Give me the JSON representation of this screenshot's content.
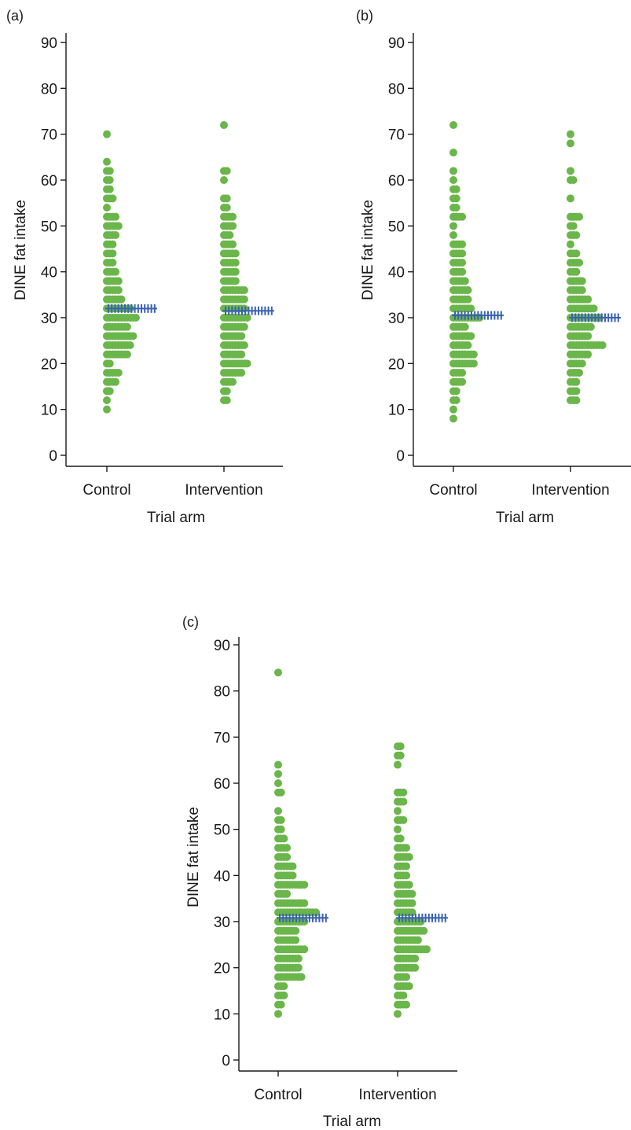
{
  "colors": {
    "points": "#6ab64a",
    "mean_markers": "#3b62b0",
    "axes": "#1a1a1a",
    "background": "#ffffff"
  },
  "chart_data": [
    {
      "panel_label": "(a)",
      "type": "scatter",
      "subtype": "strip-dot-plot",
      "xlabel": "Trial arm",
      "ylabel": "DINE fat intake",
      "ylim": [
        0,
        90
      ],
      "yticks": [
        0,
        10,
        20,
        30,
        40,
        50,
        60,
        70,
        80,
        90
      ],
      "categories": [
        "Control",
        "Intervention"
      ],
      "grid": false,
      "legend": "none",
      "groups": [
        {
          "category": "Control",
          "mean": 32,
          "bins": [
            [
              10,
              1
            ],
            [
              12,
              1
            ],
            [
              14,
              2
            ],
            [
              16,
              4
            ],
            [
              18,
              5
            ],
            [
              20,
              2
            ],
            [
              22,
              8
            ],
            [
              24,
              9
            ],
            [
              26,
              10
            ],
            [
              28,
              8
            ],
            [
              30,
              11
            ],
            [
              32,
              9
            ],
            [
              34,
              6
            ],
            [
              36,
              5
            ],
            [
              38,
              5
            ],
            [
              40,
              4
            ],
            [
              42,
              3
            ],
            [
              44,
              3
            ],
            [
              46,
              3
            ],
            [
              48,
              4
            ],
            [
              50,
              5
            ],
            [
              52,
              4
            ],
            [
              54,
              1
            ],
            [
              56,
              3
            ],
            [
              58,
              2
            ],
            [
              60,
              2
            ],
            [
              62,
              2
            ],
            [
              64,
              1
            ],
            [
              70,
              1
            ]
          ]
        },
        {
          "category": "Intervention",
          "mean": 31.5,
          "bins": [
            [
              12,
              2
            ],
            [
              14,
              2
            ],
            [
              16,
              4
            ],
            [
              18,
              7
            ],
            [
              20,
              9
            ],
            [
              22,
              7
            ],
            [
              24,
              8
            ],
            [
              26,
              7
            ],
            [
              28,
              8
            ],
            [
              30,
              9
            ],
            [
              32,
              8
            ],
            [
              34,
              8
            ],
            [
              36,
              8
            ],
            [
              38,
              5
            ],
            [
              40,
              5
            ],
            [
              42,
              5
            ],
            [
              44,
              5
            ],
            [
              46,
              4
            ],
            [
              48,
              3
            ],
            [
              50,
              4
            ],
            [
              52,
              4
            ],
            [
              54,
              2
            ],
            [
              56,
              2
            ],
            [
              60,
              1
            ],
            [
              62,
              2
            ],
            [
              72,
              1
            ]
          ]
        }
      ]
    },
    {
      "panel_label": "(b)",
      "type": "scatter",
      "subtype": "strip-dot-plot",
      "xlabel": "Trial arm",
      "ylabel": "DINE fat intake",
      "ylim": [
        0,
        90
      ],
      "yticks": [
        0,
        10,
        20,
        30,
        40,
        50,
        60,
        70,
        80,
        90
      ],
      "categories": [
        "Control",
        "Intervention"
      ],
      "grid": false,
      "legend": "none",
      "groups": [
        {
          "category": "Control",
          "mean": 30.5,
          "bins": [
            [
              8,
              1
            ],
            [
              10,
              1
            ],
            [
              12,
              2
            ],
            [
              14,
              2
            ],
            [
              16,
              4
            ],
            [
              18,
              4
            ],
            [
              20,
              8
            ],
            [
              22,
              8
            ],
            [
              24,
              6
            ],
            [
              26,
              7
            ],
            [
              28,
              5
            ],
            [
              30,
              10
            ],
            [
              32,
              7
            ],
            [
              34,
              6
            ],
            [
              36,
              6
            ],
            [
              38,
              5
            ],
            [
              40,
              4
            ],
            [
              42,
              4
            ],
            [
              44,
              4
            ],
            [
              46,
              4
            ],
            [
              48,
              1
            ],
            [
              50,
              1
            ],
            [
              52,
              4
            ],
            [
              54,
              2
            ],
            [
              56,
              2
            ],
            [
              58,
              2
            ],
            [
              60,
              1
            ],
            [
              62,
              1
            ],
            [
              66,
              1
            ],
            [
              72,
              1
            ]
          ]
        },
        {
          "category": "Intervention",
          "mean": 30,
          "bins": [
            [
              12,
              3
            ],
            [
              14,
              3
            ],
            [
              16,
              3
            ],
            [
              18,
              4
            ],
            [
              20,
              5
            ],
            [
              22,
              7
            ],
            [
              24,
              12
            ],
            [
              26,
              7
            ],
            [
              28,
              8
            ],
            [
              30,
              11
            ],
            [
              32,
              9
            ],
            [
              34,
              7
            ],
            [
              36,
              5
            ],
            [
              38,
              5
            ],
            [
              40,
              3
            ],
            [
              42,
              4
            ],
            [
              44,
              3
            ],
            [
              46,
              1
            ],
            [
              48,
              3
            ],
            [
              50,
              2
            ],
            [
              52,
              4
            ],
            [
              56,
              1
            ],
            [
              60,
              2
            ],
            [
              62,
              1
            ],
            [
              68,
              1
            ],
            [
              70,
              1
            ]
          ]
        }
      ]
    },
    {
      "panel_label": "(c)",
      "type": "scatter",
      "subtype": "strip-dot-plot",
      "xlabel": "Trial arm",
      "ylabel": "DINE fat intake",
      "ylim": [
        0,
        90
      ],
      "yticks": [
        0,
        10,
        20,
        30,
        40,
        50,
        60,
        70,
        80,
        90
      ],
      "categories": [
        "Control",
        "Intervention"
      ],
      "grid": false,
      "legend": "none",
      "groups": [
        {
          "category": "Control",
          "mean": 30.8,
          "bins": [
            [
              10,
              1
            ],
            [
              12,
              2
            ],
            [
              14,
              3
            ],
            [
              16,
              3
            ],
            [
              18,
              9
            ],
            [
              20,
              8
            ],
            [
              22,
              8
            ],
            [
              24,
              10
            ],
            [
              26,
              7
            ],
            [
              28,
              7
            ],
            [
              30,
              10
            ],
            [
              32,
              14
            ],
            [
              34,
              10
            ],
            [
              36,
              4
            ],
            [
              38,
              10
            ],
            [
              40,
              6
            ],
            [
              42,
              6
            ],
            [
              44,
              4
            ],
            [
              46,
              4
            ],
            [
              48,
              3
            ],
            [
              50,
              2
            ],
            [
              52,
              2
            ],
            [
              54,
              1
            ],
            [
              58,
              2
            ],
            [
              60,
              1
            ],
            [
              62,
              1
            ],
            [
              64,
              1
            ],
            [
              84,
              1
            ]
          ]
        },
        {
          "category": "Intervention",
          "mean": 30.8,
          "bins": [
            [
              10,
              1
            ],
            [
              12,
              4
            ],
            [
              14,
              3
            ],
            [
              16,
              5
            ],
            [
              18,
              4
            ],
            [
              20,
              7
            ],
            [
              22,
              7
            ],
            [
              24,
              11
            ],
            [
              26,
              8
            ],
            [
              28,
              10
            ],
            [
              30,
              9
            ],
            [
              32,
              6
            ],
            [
              34,
              6
            ],
            [
              36,
              6
            ],
            [
              38,
              5
            ],
            [
              40,
              4
            ],
            [
              42,
              4
            ],
            [
              44,
              5
            ],
            [
              46,
              4
            ],
            [
              48,
              2
            ],
            [
              50,
              1
            ],
            [
              52,
              3
            ],
            [
              54,
              1
            ],
            [
              56,
              3
            ],
            [
              58,
              3
            ],
            [
              64,
              1
            ],
            [
              66,
              2
            ],
            [
              68,
              2
            ]
          ]
        }
      ]
    }
  ]
}
